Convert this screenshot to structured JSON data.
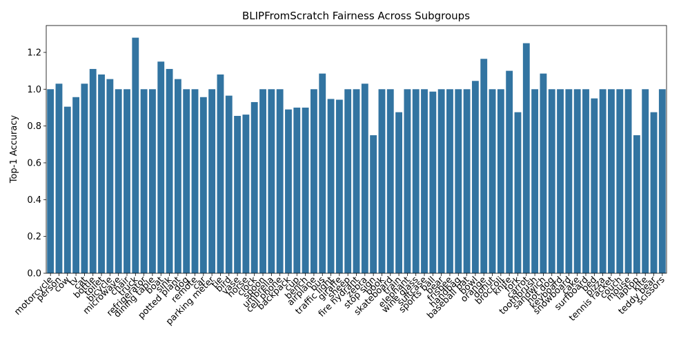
{
  "chart_data": {
    "type": "bar",
    "title": "BLIPFromScratch Fairness Across Subgroups",
    "ylabel": "Top-1 Accuracy",
    "categories": [
      "motorcycle",
      "person",
      "cow",
      "tv",
      "cat",
      "bottle",
      "toilet",
      "bicycle",
      "microwave",
      "chair",
      "truck",
      "refrigerator",
      "dining table",
      "boat",
      "sink",
      "potted plant",
      "dog",
      "remote",
      "car",
      "parking meter",
      "tie",
      "bird",
      "vase",
      "horse",
      "clock",
      "spoon",
      "umbrella",
      "cell phone",
      "backpack",
      "cup",
      "bench",
      "airplane",
      "bus",
      "traffic light",
      "giraffe",
      "sheep",
      "fire hydrant",
      "zebra",
      "stop sign",
      "book",
      "skateboard",
      "train",
      "elephant",
      "wine glass",
      "suitcase",
      "sports ball",
      "bear",
      "frisbee",
      "handbag",
      "baseball bat",
      "bowl",
      "orange",
      "donut",
      "broccoli",
      "knife",
      "fork",
      "carrot",
      "toothbrush",
      "sandwich",
      "hot dog",
      "keyboard",
      "snowboard",
      "cake",
      "surfboard",
      "bed",
      "pizza",
      "tennis racket",
      "couch",
      "mouse",
      "laptop",
      "kite",
      "teddy bear",
      "scissors"
    ],
    "values": [
      1.0,
      1.03,
      0.905,
      0.957,
      1.03,
      1.11,
      1.08,
      1.055,
      1.0,
      1.0,
      1.28,
      1.0,
      1.0,
      1.15,
      1.11,
      1.055,
      1.0,
      1.0,
      0.957,
      1.0,
      1.08,
      0.965,
      0.855,
      0.862,
      0.93,
      1.0,
      1.0,
      1.0,
      0.89,
      0.9,
      0.9,
      1.0,
      1.085,
      0.947,
      0.943,
      1.0,
      1.0,
      1.03,
      0.75,
      1.0,
      1.0,
      0.875,
      1.0,
      1.0,
      1.0,
      0.987,
      1.0,
      1.0,
      1.0,
      1.0,
      1.045,
      1.165,
      1.0,
      1.0,
      1.1,
      0.875,
      1.25,
      1.0,
      1.085,
      1.0,
      1.0,
      1.0,
      1.0,
      1.0,
      0.95,
      1.0,
      1.0,
      1.0,
      1.0,
      0.75,
      1.0,
      0.875,
      1.0
    ],
    "color": "#3274a1",
    "ylim": [
      0,
      1.346
    ],
    "yticks": [
      {
        "value": 0,
        "label": "0.0"
      },
      {
        "value": 0.2,
        "label": "0.2"
      },
      {
        "value": 0.4,
        "label": "0.4"
      },
      {
        "value": 0.6,
        "label": "0.6"
      },
      {
        "value": 0.8,
        "label": "0.8"
      },
      {
        "value": 1,
        "label": "1.0"
      },
      {
        "value": 1.2,
        "label": "1.2"
      }
    ],
    "grid": false
  }
}
